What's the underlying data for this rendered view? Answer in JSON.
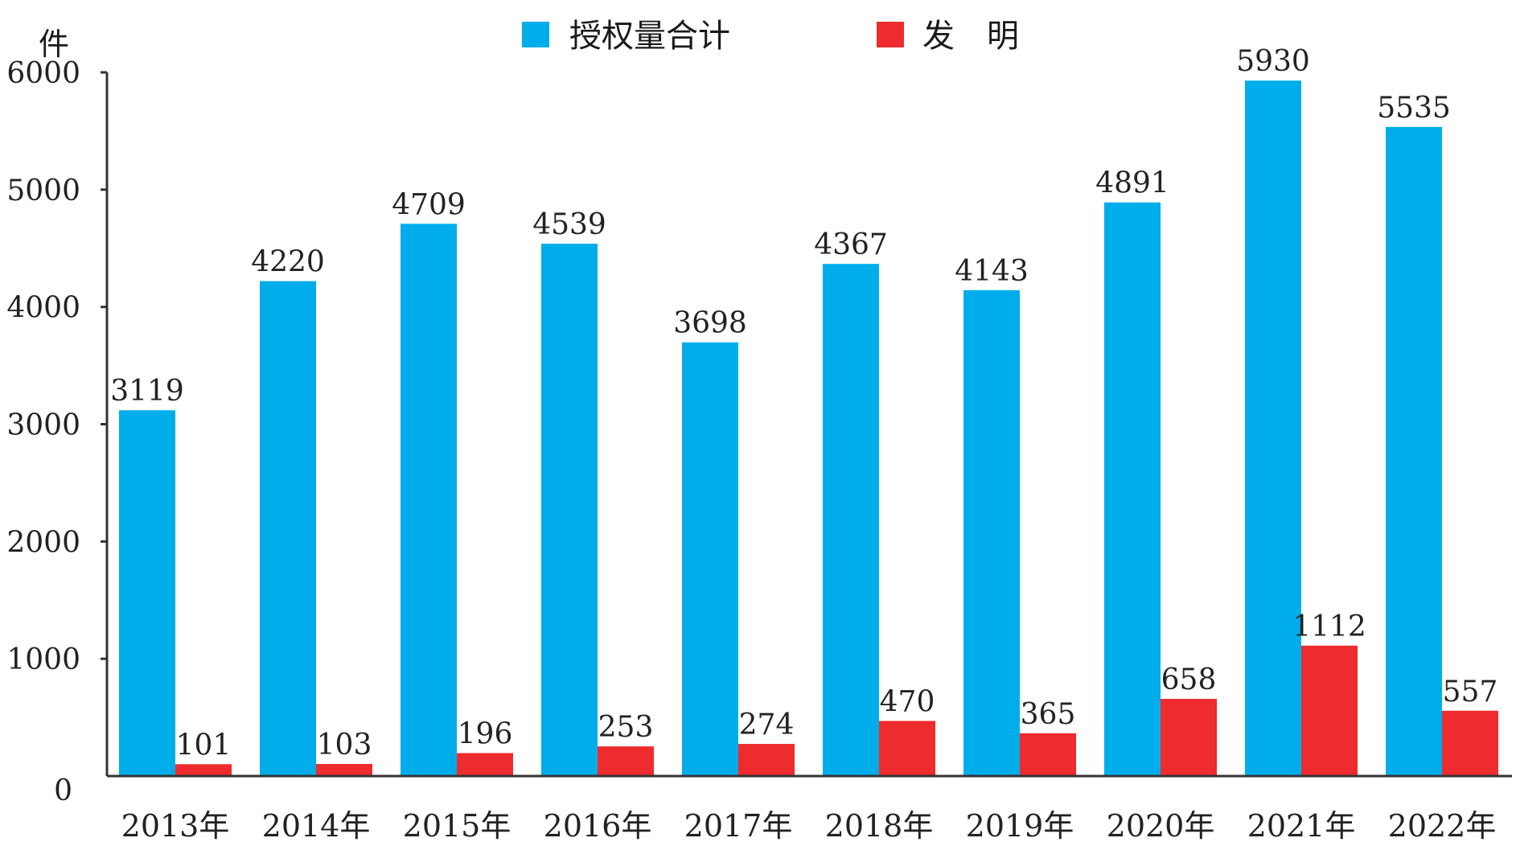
{
  "chart_data": {
    "type": "bar",
    "unit_label": "件",
    "ylim": [
      0,
      6000
    ],
    "yticks": [
      0,
      1000,
      2000,
      3000,
      4000,
      5000,
      6000
    ],
    "categories": [
      "2013年",
      "2014年",
      "2015年",
      "2016年",
      "2017年",
      "2018年",
      "2019年",
      "2020年",
      "2021年",
      "2022年"
    ],
    "series": [
      {
        "name": "授权量合计",
        "color": "#00adeb",
        "values": [
          3119,
          4220,
          4709,
          4539,
          3698,
          4367,
          4143,
          4891,
          5930,
          5535
        ]
      },
      {
        "name": "发　明",
        "color": "#ee2b2e",
        "values": [
          101,
          103,
          196,
          253,
          274,
          470,
          365,
          658,
          1112,
          557
        ]
      }
    ],
    "legend_position": "top-center",
    "grid": false
  }
}
